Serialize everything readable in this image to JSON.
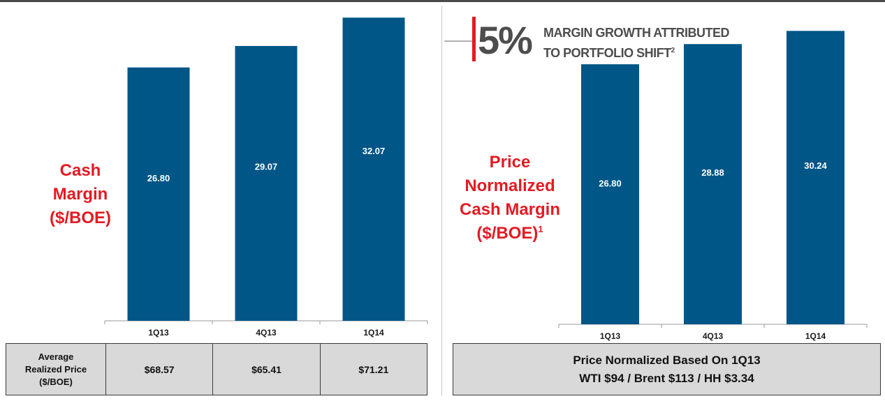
{
  "chart_data": [
    {
      "type": "bar",
      "title": "",
      "ylabel_lines": [
        "Cash",
        "Margin",
        "($/BOE)"
      ],
      "categories": [
        "1Q13",
        "4Q13",
        "1Q14"
      ],
      "values": [
        26.8,
        29.07,
        32.07
      ],
      "value_labels": [
        "26.80",
        "29.07",
        "32.07"
      ],
      "ylim": [
        0,
        36
      ],
      "grid": false,
      "bar_color": "#005686"
    },
    {
      "type": "bar",
      "title": "",
      "ylabel_lines": [
        "Price",
        "Normalized",
        "Cash Margin",
        "($/BOE)"
      ],
      "ylabel_footnote": "1",
      "categories": [
        "1Q13",
        "4Q13",
        "1Q14"
      ],
      "values": [
        26.8,
        28.88,
        30.24
      ],
      "value_labels": [
        "26.80",
        "28.88",
        "30.24"
      ],
      "ylim": [
        0,
        34
      ],
      "grid": false,
      "bar_color": "#005686"
    }
  ],
  "callout": {
    "percent": "5%",
    "line1": "MARGIN GROWTH ATTRIBUTED",
    "line2": "TO PORTFOLIO SHIFT",
    "footnote": "2"
  },
  "price_table": {
    "header_lines": [
      "Average",
      "Realized Price",
      "($/BOE)"
    ],
    "values": [
      "$68.57",
      "$65.41",
      "$71.21"
    ]
  },
  "normalized_note": {
    "line1": "Price Normalized Based On 1Q13",
    "line2": "WTI $94 / Brent $113 / HH $3.34"
  },
  "colors": {
    "accent": "#e31b23",
    "bar": "#005686",
    "panel": "#d9d9d9",
    "text_gray": "#4d4d4d"
  }
}
